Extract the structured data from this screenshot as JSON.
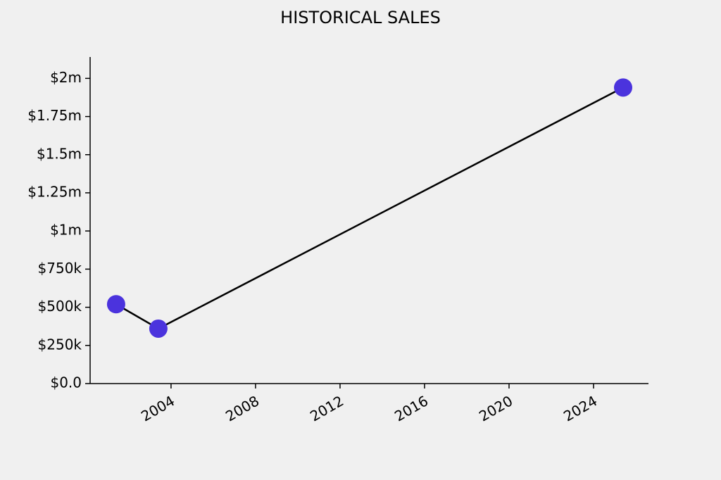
{
  "chart_data": {
    "type": "line",
    "title": "HISTORICAL SALES",
    "x": [
      2001.4,
      2003.4,
      2025.4
    ],
    "series": [
      {
        "name": "Sales",
        "color": "#4b33dd",
        "line_color": "#000000",
        "values": [
          520000,
          360000,
          1940000
        ]
      }
    ],
    "xlim": [
      2000.17,
      2026.6
    ],
    "xticks": [
      2004,
      2008,
      2012,
      2016,
      2020,
      2024
    ],
    "ylim": [
      0,
      2140000
    ],
    "yticks": [
      {
        "value": 0,
        "label": "$0.0"
      },
      {
        "value": 250000,
        "label": "$250k"
      },
      {
        "value": 500000,
        "label": "$500k"
      },
      {
        "value": 750000,
        "label": "$750k"
      },
      {
        "value": 1000000,
        "label": "$1m"
      },
      {
        "value": 1250000,
        "label": "$1.25m"
      },
      {
        "value": 1500000,
        "label": "$1.5m"
      },
      {
        "value": 1750000,
        "label": "$1.75m"
      },
      {
        "value": 2000000,
        "label": "$2m"
      }
    ]
  }
}
